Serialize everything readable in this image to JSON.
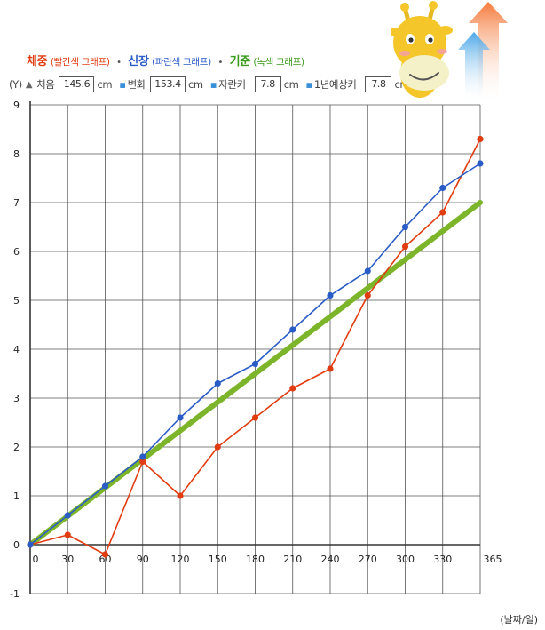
{
  "legend": {
    "weight_label": "체중",
    "weight_note": "(빨간색 그래프)",
    "height_label": "신장",
    "height_note": "(파란색 그래프)",
    "standard_label": "기준",
    "standard_note": "(녹색 그래프)",
    "separator": "•"
  },
  "info": {
    "y_marker": "(Y)",
    "start_label": "처음",
    "start_value": "145.6",
    "change_label": "변화",
    "change_value": "153.4",
    "growth_label": "자란키",
    "growth_value": "7.8",
    "expected_label": "1년예상키",
    "expected_value": "7.8",
    "unit": "cm"
  },
  "x_unit_label": "(날짜/일)",
  "colors": {
    "weight": "#e03c10",
    "height": "#2a5cc8",
    "standard": "#7cb52a",
    "grid": "#555555"
  },
  "icons": {
    "mascot": "giraffe-icon",
    "arrows": "growth-arrows-icon"
  },
  "chart_data": {
    "type": "line",
    "y_axis_label": "(Y)",
    "x_axis_label": "(날짜/일)",
    "ylim": [
      -1,
      9
    ],
    "xlim": [
      0,
      365
    ],
    "grid": true,
    "x_ticks": [
      0,
      30,
      60,
      90,
      120,
      150,
      180,
      210,
      240,
      270,
      300,
      330,
      365
    ],
    "y_ticks": [
      -1,
      0,
      1,
      2,
      3,
      4,
      5,
      6,
      7,
      8,
      9
    ],
    "series": [
      {
        "name": "체중",
        "color": "#e03c10",
        "points": [
          [
            0,
            0
          ],
          [
            30,
            0.2
          ],
          [
            60,
            -0.2
          ],
          [
            90,
            1.7
          ],
          [
            120,
            1.0
          ],
          [
            150,
            2.0
          ],
          [
            180,
            2.6
          ],
          [
            210,
            3.2
          ],
          [
            240,
            3.6
          ],
          [
            270,
            5.1
          ],
          [
            300,
            6.1
          ],
          [
            330,
            6.8
          ],
          [
            360,
            8.3
          ]
        ]
      },
      {
        "name": "신장",
        "color": "#2a5cc8",
        "points": [
          [
            0,
            0
          ],
          [
            30,
            0.6
          ],
          [
            60,
            1.2
          ],
          [
            90,
            1.8
          ],
          [
            120,
            2.6
          ],
          [
            150,
            3.3
          ],
          [
            180,
            3.7
          ],
          [
            210,
            4.4
          ],
          [
            240,
            5.1
          ],
          [
            270,
            5.6
          ],
          [
            300,
            6.5
          ],
          [
            330,
            7.3
          ],
          [
            360,
            7.8
          ]
        ]
      },
      {
        "name": "기준",
        "color": "#7cb52a",
        "points": [
          [
            0,
            0
          ],
          [
            360,
            7.0
          ]
        ]
      }
    ]
  }
}
